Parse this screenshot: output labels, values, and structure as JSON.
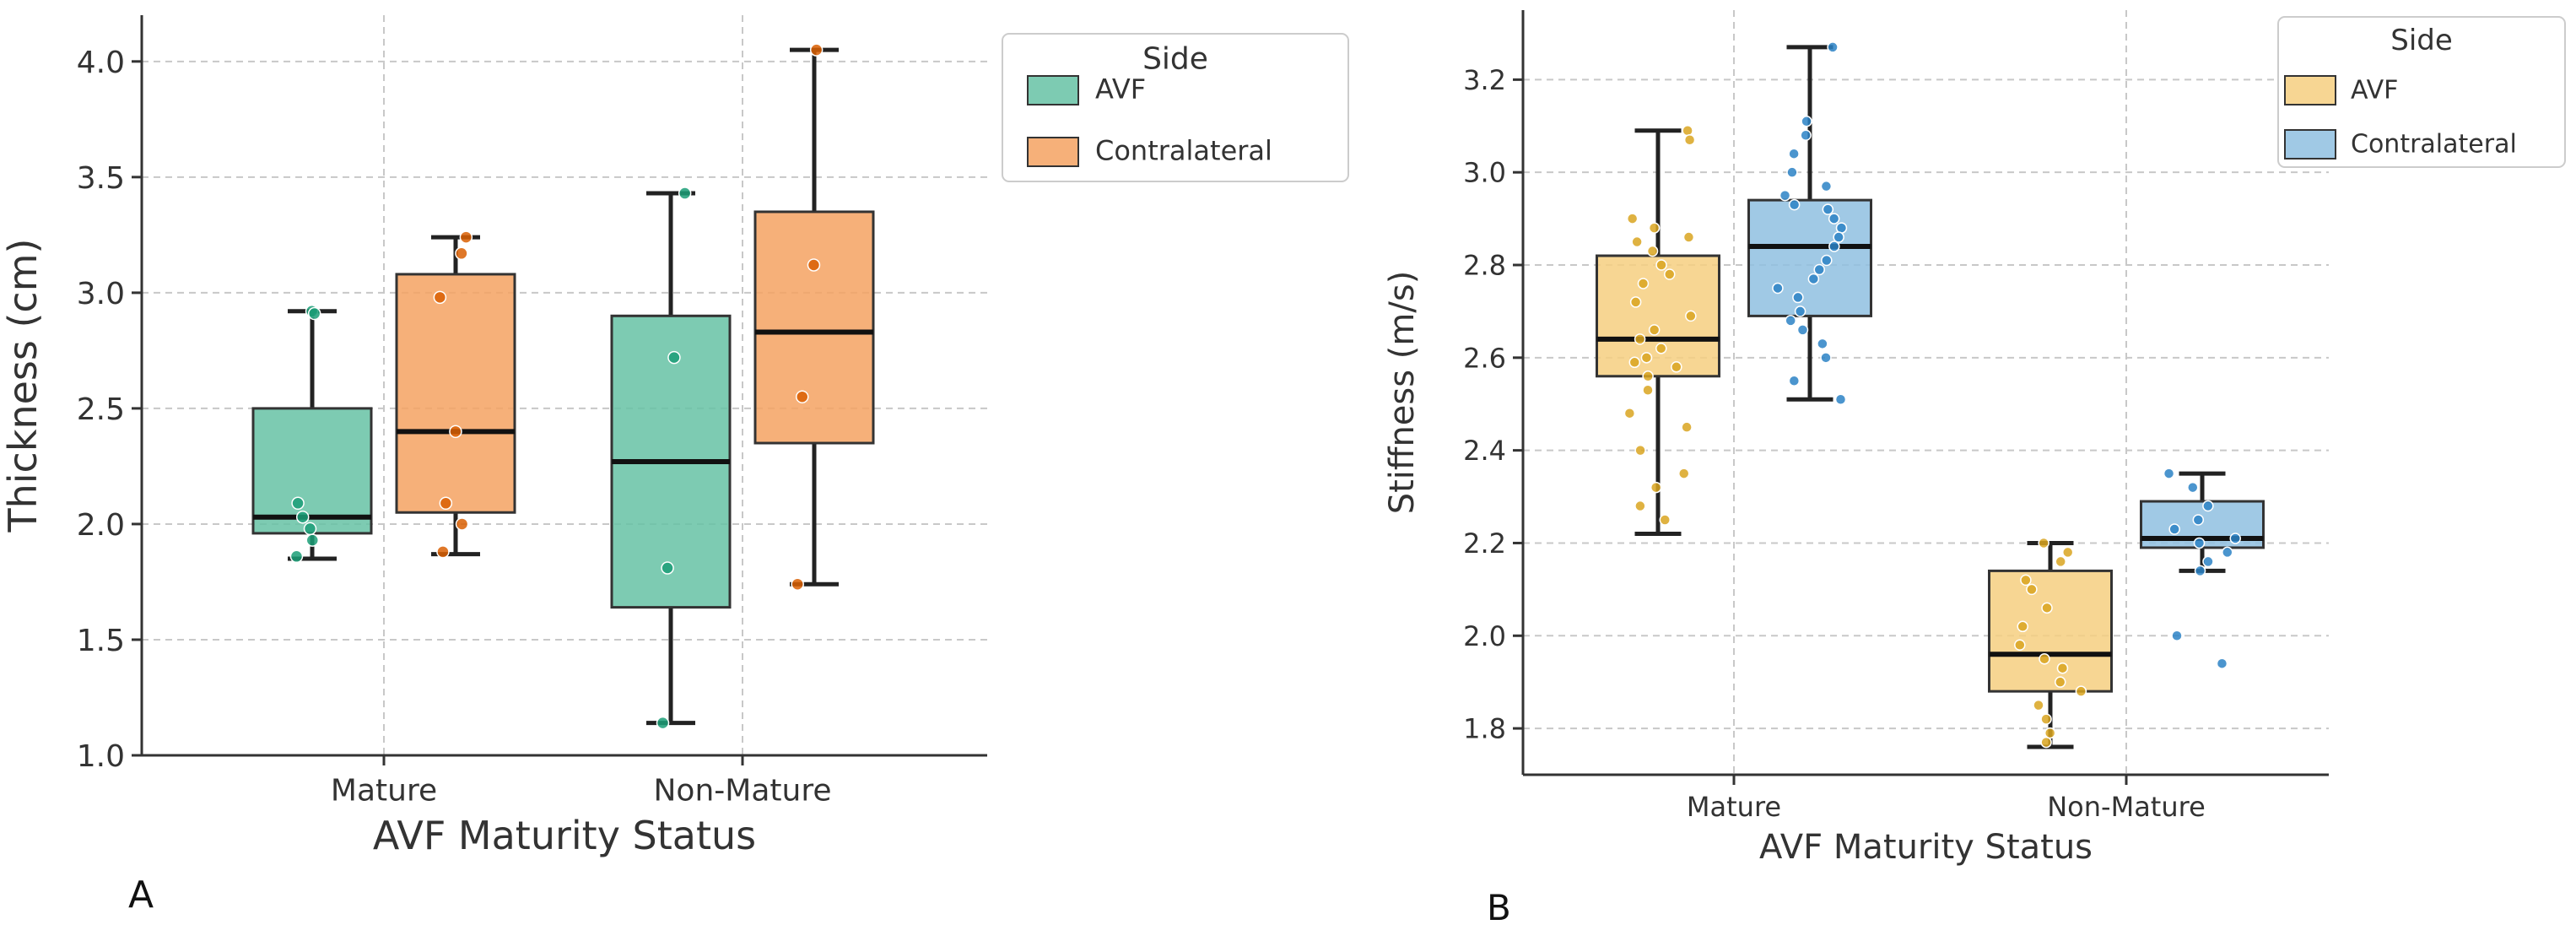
{
  "chart_data": [
    {
      "panel_label": "A",
      "type": "box",
      "xlabel": "AVF Maturity Status",
      "ylabel": "Thickness (cm)",
      "ylim": [
        1.0,
        4.2
      ],
      "yticks": [
        "1.0",
        "1.5",
        "2.0",
        "2.5",
        "3.0",
        "3.5",
        "4.0"
      ],
      "categories": [
        "Mature",
        "Non-Mature"
      ],
      "grid": true,
      "legend": {
        "title": "Side",
        "position": "top-right-outside",
        "entries": [
          "AVF",
          "Contralateral"
        ]
      },
      "series": [
        {
          "name": "AVF",
          "color": "#66c2a5",
          "point_color": "#1b9e77",
          "boxes": [
            {
              "min": 1.85,
              "q1": 1.96,
              "median": 2.03,
              "q3": 2.5,
              "max": 2.92,
              "points": [
                2.92,
                2.91,
                2.09,
                2.03,
                1.98,
                1.93,
                1.86
              ]
            },
            {
              "min": 1.14,
              "q1": 1.64,
              "median": 2.27,
              "q3": 2.9,
              "max": 3.43,
              "points": [
                3.43,
                2.72,
                1.81,
                1.14
              ]
            }
          ]
        },
        {
          "name": "Contralateral",
          "color": "#f4a261",
          "point_color": "#d95f02",
          "boxes": [
            {
              "min": 1.87,
              "q1": 2.05,
              "median": 2.4,
              "q3": 3.08,
              "max": 3.24,
              "points": [
                3.24,
                3.17,
                2.98,
                2.4,
                2.09,
                2.0,
                1.88
              ]
            },
            {
              "min": 1.74,
              "q1": 2.35,
              "median": 2.83,
              "q3": 3.35,
              "max": 4.05,
              "points": [
                4.05,
                3.12,
                2.55,
                1.74
              ]
            }
          ]
        }
      ]
    },
    {
      "panel_label": "B",
      "type": "box",
      "xlabel": "AVF Maturity Status",
      "ylabel": "Stiffness (m/s)",
      "ylim": [
        1.7,
        3.35
      ],
      "yticks": [
        "1.8",
        "2.0",
        "2.2",
        "2.4",
        "2.6",
        "2.8",
        "3.0",
        "3.2"
      ],
      "categories": [
        "Mature",
        "Non-Mature"
      ],
      "grid": true,
      "legend": {
        "title": "Side",
        "position": "top-right-outside",
        "entries": [
          "AVF",
          "Contralateral"
        ]
      },
      "series": [
        {
          "name": "AVF",
          "color": "#f6cf80",
          "point_color": "#d9a520",
          "boxes": [
            {
              "min": 2.22,
              "q1": 2.56,
              "median": 2.64,
              "q3": 2.82,
              "max": 3.09,
              "points": [
                3.09,
                3.07,
                2.9,
                2.88,
                2.86,
                2.85,
                2.83,
                2.8,
                2.78,
                2.76,
                2.72,
                2.69,
                2.66,
                2.64,
                2.62,
                2.6,
                2.59,
                2.58,
                2.56,
                2.53,
                2.48,
                2.45,
                2.4,
                2.35,
                2.32,
                2.28,
                2.25
              ]
            },
            {
              "min": 1.76,
              "q1": 1.88,
              "median": 1.96,
              "q3": 2.14,
              "max": 2.2,
              "points": [
                2.2,
                2.18,
                2.16,
                2.12,
                2.1,
                2.06,
                2.02,
                1.98,
                1.95,
                1.93,
                1.9,
                1.88,
                1.85,
                1.82,
                1.79,
                1.77
              ]
            }
          ]
        },
        {
          "name": "Contralateral",
          "color": "#8fbfe0",
          "point_color": "#2b83c6",
          "boxes": [
            {
              "min": 2.51,
              "q1": 2.69,
              "median": 2.84,
              "q3": 2.94,
              "max": 3.27,
              "points": [
                3.27,
                3.11,
                3.08,
                3.04,
                3.0,
                2.97,
                2.95,
                2.93,
                2.92,
                2.9,
                2.88,
                2.86,
                2.84,
                2.81,
                2.79,
                2.77,
                2.75,
                2.73,
                2.7,
                2.68,
                2.66,
                2.63,
                2.6,
                2.55,
                2.51
              ]
            },
            {
              "min": 2.14,
              "q1": 2.19,
              "median": 2.21,
              "q3": 2.29,
              "max": 2.35,
              "points": [
                2.35,
                2.32,
                2.28,
                2.25,
                2.23,
                2.21,
                2.2,
                2.18,
                2.16,
                2.14,
                2.0,
                1.94
              ]
            }
          ]
        }
      ]
    }
  ]
}
